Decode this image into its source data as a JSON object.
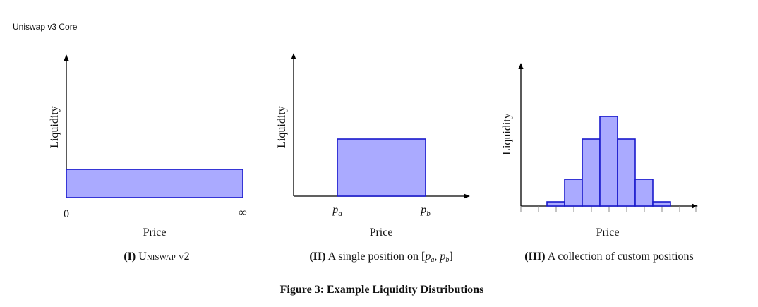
{
  "header": {
    "title": "Uniswap v3 Core"
  },
  "figure": {
    "caption": "Figure 3: Example Liquidity Distributions",
    "panels": [
      {
        "label": "(I)",
        "caption": "Uniswap v2",
        "y_label": "Liquidity",
        "x_label": "Price",
        "tick_labels": [
          "0",
          "∞"
        ]
      },
      {
        "label": "(II)",
        "caption": "A single position on",
        "caption_math": {
          "open": "[",
          "first": {
            "base": "p",
            "sub": "a"
          },
          "sep": ", ",
          "second": {
            "base": "p",
            "sub": "b"
          },
          "close": "]"
        },
        "y_label": "Liquidity",
        "x_label": "Price",
        "tick_labels": [
          {
            "base": "p",
            "sub": "a"
          },
          {
            "base": "p",
            "sub": "b"
          }
        ]
      },
      {
        "label": "(III)",
        "caption": "A collection of custom positions",
        "y_label": "Liquidity",
        "x_label": "Price"
      }
    ]
  }
}
